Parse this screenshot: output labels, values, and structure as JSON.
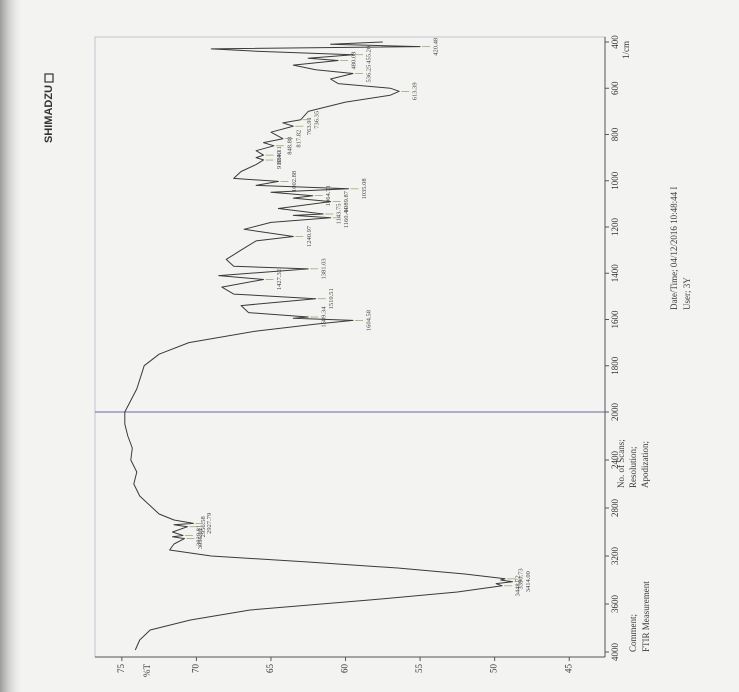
{
  "brand": "SHIMADZU",
  "chart_data": {
    "type": "line",
    "x": [
      3983,
      3900,
      3817,
      3733,
      3650,
      3567,
      3500,
      3448,
      3430,
      3414,
      3400,
      3390,
      3350,
      3300,
      3250,
      3200,
      3150,
      3100,
      3055,
      3040,
      3029,
      3000,
      2956,
      2940,
      2928,
      2900,
      2850,
      2700,
      2600,
      2500,
      2400,
      2300,
      2200,
      2100,
      2000,
      1900,
      1800,
      1750,
      1700,
      1650,
      1620,
      1604,
      1595,
      1589,
      1570,
      1540,
      1510,
      1490,
      1460,
      1427,
      1410,
      1381,
      1370,
      1340,
      1300,
      1260,
      1241,
      1210,
      1180,
      1160,
      1150,
      1144,
      1120,
      1090,
      1075,
      1065,
      1050,
      1035,
      1020,
      1003,
      990,
      960,
      930,
      910,
      900,
      889,
      870,
      849,
      835,
      818,
      790,
      764,
      750,
      736,
      700,
      660,
      630,
      613,
      600,
      580,
      560,
      536,
      520,
      500,
      480,
      470,
      455,
      440,
      430,
      420,
      410,
      400
    ],
    "values": [
      74.1,
      73.8,
      73.1,
      70.4,
      66.4,
      58.4,
      52.5,
      49.5,
      49.9,
      48.8,
      49.6,
      49.3,
      52.0,
      56.5,
      62.5,
      69.0,
      71.8,
      71.5,
      70.8,
      71.6,
      70.9,
      71.6,
      70.6,
      71.5,
      70.2,
      71.5,
      72.5,
      73.8,
      74.2,
      74.0,
      74.4,
      74.3,
      74.6,
      74.8,
      74.8,
      74.0,
      73.5,
      72.5,
      70.5,
      66.0,
      62.0,
      59.5,
      63.5,
      62.5,
      66.5,
      67.0,
      62.0,
      67.5,
      68.3,
      65.5,
      68.5,
      62.5,
      67.5,
      68.0,
      67.0,
      66.0,
      63.5,
      66.8,
      65.0,
      61.0,
      63.5,
      61.5,
      64.5,
      61.0,
      63.5,
      62.2,
      65.0,
      59.8,
      66.0,
      64.5,
      67.5,
      67.0,
      66.0,
      65.5,
      66.0,
      65.5,
      66.0,
      64.8,
      65.5,
      64.2,
      65.0,
      63.5,
      64.2,
      63.0,
      62.5,
      60.0,
      57.0,
      56.4,
      57.0,
      60.5,
      61.0,
      59.5,
      62.0,
      63.5,
      60.5,
      62.5,
      59.5,
      66.0,
      69.0,
      55.0,
      61.0,
      57.5
    ],
    "color": "#3a3a3a",
    "xlim": [
      4000,
      400
    ],
    "xticks": [
      4000,
      3600,
      3200,
      2800,
      2400,
      2000,
      1800,
      1600,
      1400,
      1200,
      1000,
      800,
      600,
      400
    ],
    "scale_change_at": 2000,
    "x_unit_label": "1/cm",
    "ylim": [
      42.6,
      76.8
    ],
    "yticks": [
      75,
      70,
      65,
      60,
      55,
      50,
      45
    ],
    "y_axis_label": "%T",
    "peaks": {
      "x": [
        3448.72,
        3414.0,
        3390.73,
        3055.01,
        3028.81,
        2956.58,
        2927.79,
        1604.58,
        1589.34,
        1510.51,
        1427.32,
        1381.03,
        1240.97,
        1160.44,
        1143.75,
        1089.87,
        1064.71,
        1035.08,
        1002.88,
        910.4,
        889.11,
        848.88,
        817.82,
        763.91,
        736.35,
        613.39,
        536.25,
        480.08,
        455.2,
        420.48
      ],
      "y": [
        49.5,
        48.8,
        49.3,
        70.8,
        70.9,
        70.6,
        70.2,
        59.5,
        62.5,
        62.0,
        65.5,
        62.5,
        63.5,
        61.0,
        61.5,
        61.0,
        62.2,
        59.8,
        64.5,
        65.5,
        65.5,
        64.8,
        64.2,
        63.5,
        63.0,
        56.4,
        59.5,
        60.5,
        59.5,
        55.0
      ],
      "labels": [
        "3448.72",
        "3414.00",
        "3390.73",
        "3055.01",
        "3028.81",
        "2956.58",
        "2927.79",
        "1604.58",
        "1589.34",
        "1510.51",
        "1427.32",
        "1381.03",
        "1240.97",
        "1160.44",
        "1143.75",
        "1089.87",
        "1064.71",
        "1035.08",
        "1002.88",
        "910.40",
        "889.11",
        "848.88",
        "817.82",
        "763.91",
        "736.35",
        "613.39",
        "536.25",
        "480.08",
        "455.20",
        "420.48"
      ]
    }
  },
  "info": {
    "comment_label": "Comment;",
    "comment": "FTIR Measurement",
    "scans_label": "No. of Scans;",
    "resolution_label": "Resolution;",
    "apodization_label": "Apodization;",
    "datetime": "Date/Time; 04/12/2016 10:48:44 I",
    "user": "User;   3Y"
  }
}
